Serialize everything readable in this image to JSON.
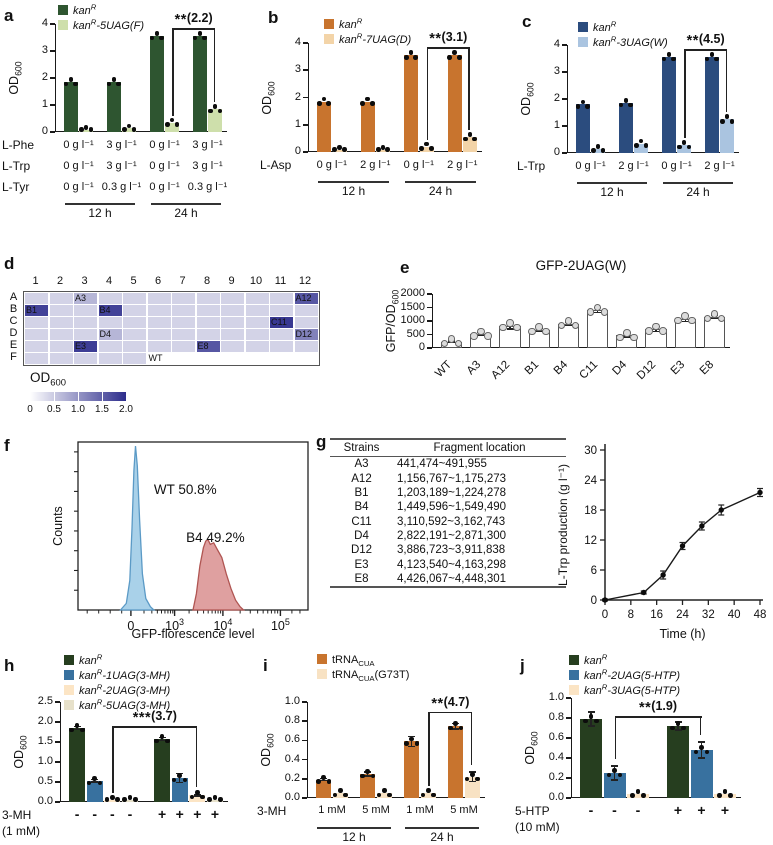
{
  "letters": {
    "a": "a",
    "b": "b",
    "c": "c",
    "d": "d",
    "e": "e",
    "f": "f",
    "g": "g",
    "h": "h",
    "i": "i",
    "j": "j"
  },
  "chart_data": [
    {
      "id": "a",
      "type": "bar",
      "ylabel": "OD_600_",
      "ymax": 4,
      "yticks": [
        "0",
        "1",
        "2",
        "3",
        "4"
      ],
      "colors": [
        "#2e5530",
        "#cedfab"
      ],
      "group_gap": 14,
      "legend": [
        {
          "label": "kan~R~",
          "italic": true
        },
        {
          "label": "kan~R~-5UAG(F)",
          "italic": true
        }
      ],
      "groups": [
        [
          1.85,
          0.08
        ],
        [
          1.85,
          0.13
        ],
        [
          3.55,
          0.35
        ],
        [
          3.55,
          0.85
        ]
      ],
      "xrows": [
        {
          "label": "L-Phe",
          "mode": "group",
          "values": [
            "0 g l⁻¹",
            "3 g l⁻¹",
            "0 g l⁻¹",
            "3 g l⁻¹"
          ]
        },
        {
          "label": "L-Trp",
          "mode": "group",
          "values": [
            "0 g l⁻¹",
            "3 g l⁻¹",
            "0 g l⁻¹",
            "3 g l⁻¹"
          ]
        },
        {
          "label": "L-Tyr",
          "mode": "group",
          "values": [
            "0 g l⁻¹",
            "0.3 g l⁻¹",
            "0 g l⁻¹",
            "0.3 g l⁻¹"
          ]
        }
      ],
      "time_groups": [
        {
          "label": "12 h",
          "from": 0,
          "to": 1
        },
        {
          "label": "24 h",
          "from": 2,
          "to": 3
        }
      ],
      "sig": {
        "text": "**(2.2)",
        "from": [
          2,
          1
        ],
        "to": [
          3,
          1
        ],
        "y": 3.85
      }
    },
    {
      "id": "b",
      "type": "bar",
      "ylabel": "OD_600_",
      "ymax": 4,
      "yticks": [
        "0",
        "1",
        "2",
        "3",
        "4"
      ],
      "colors": [
        "#c8742e",
        "#f3d4a8"
      ],
      "group_gap": 14,
      "legend": [
        {
          "label": "kan~R~",
          "italic": true
        },
        {
          "label": "kan~R~-7UAG(D)",
          "italic": true
        }
      ],
      "groups": [
        [
          1.85,
          0.07
        ],
        [
          1.85,
          0.08
        ],
        [
          3.55,
          0.2
        ],
        [
          3.55,
          0.55
        ]
      ],
      "xrows": [
        {
          "label": "L-Asp",
          "mode": "group",
          "values": [
            "0 g l⁻¹",
            "2 g l⁻¹",
            "0 g l⁻¹",
            "2 g l⁻¹"
          ]
        }
      ],
      "time_groups": [
        {
          "label": "12 h",
          "from": 0,
          "to": 1
        },
        {
          "label": "24 h",
          "from": 2,
          "to": 3
        }
      ],
      "sig": {
        "text": "**(3.1)",
        "from": [
          2,
          1
        ],
        "to": [
          3,
          1
        ],
        "y": 3.85
      }
    },
    {
      "id": "c",
      "type": "bar",
      "ylabel": "OD_600_",
      "ymax": 4,
      "yticks": [
        "0",
        "1",
        "2",
        "3",
        "4"
      ],
      "colors": [
        "#2b4c7e",
        "#aac4e0"
      ],
      "group_gap": 14,
      "legend": [
        {
          "label": "kan~R~",
          "italic": true
        },
        {
          "label": "kan~R~-3UAG(W)",
          "italic": true
        }
      ],
      "groups": [
        [
          1.8,
          0.15
        ],
        [
          1.85,
          0.35
        ],
        [
          3.55,
          0.3
        ],
        [
          3.55,
          1.25
        ]
      ],
      "xrows": [
        {
          "label": "L-Trp",
          "mode": "group",
          "values": [
            "0 g l⁻¹",
            "2 g l⁻¹",
            "0 g l⁻¹",
            "2 g l⁻¹"
          ]
        }
      ],
      "time_groups": [
        {
          "label": "12 h",
          "from": 0,
          "to": 1
        },
        {
          "label": "24 h",
          "from": 2,
          "to": 3
        }
      ],
      "sig": {
        "text": "**(4.5)",
        "from": [
          2,
          1
        ],
        "to": [
          3,
          1
        ],
        "y": 3.85
      }
    },
    {
      "id": "e",
      "type": "bar",
      "title": "GFP-2UAG(W)",
      "ylabel": "GFP/OD_600_",
      "ymax": 2000,
      "yticks": [
        "0",
        "500",
        "1000",
        "1500",
        "2000"
      ],
      "colors": [
        "#ffffff"
      ],
      "bar_stroke": "#555",
      "open_dots": true,
      "group_gap": 8,
      "groups": [
        [
          230
        ],
        [
          520
        ],
        [
          830
        ],
        [
          680
        ],
        [
          900
        ],
        [
          1400
        ],
        [
          470
        ],
        [
          700
        ],
        [
          1090
        ],
        [
          1160
        ]
      ],
      "errs": [
        [
          30
        ],
        [
          60
        ],
        [
          120
        ],
        [
          60
        ],
        [
          70
        ],
        [
          90
        ],
        [
          60
        ],
        [
          90
        ],
        [
          110
        ],
        [
          60
        ]
      ],
      "cats": [
        "WT",
        "A3",
        "A12",
        "B1",
        "B4",
        "C11",
        "D4",
        "D12",
        "E3",
        "E8"
      ]
    },
    {
      "id": "h",
      "type": "bar",
      "ylabel": "OD_600_",
      "ymax": 2.5,
      "yticks": [
        "0.0",
        "0.5",
        "1.0",
        "1.5",
        "2.0",
        "2.5"
      ],
      "colors": [
        "#263e1f",
        "#38719f",
        "#fce5c5",
        "#e7e1ca"
      ],
      "group_gap": 16,
      "legend": [
        {
          "label": "kan~R~",
          "italic": true
        },
        {
          "label": "kan~R~-1UAG(3-MH)",
          "italic": true
        },
        {
          "label": "kan~R~-2UAG(3-MH)",
          "italic": true
        },
        {
          "label": "kan~R~-5UAG(3-MH)",
          "italic": true
        }
      ],
      "groups": [
        [
          1.85,
          0.53,
          0.05,
          0.05
        ],
        [
          1.57,
          0.6,
          0.17,
          0.05
        ]
      ],
      "errs": [
        [
          0.03,
          0.03,
          0,
          0
        ],
        [
          0.04,
          0.12,
          0.02,
          0
        ]
      ],
      "xrows": [
        {
          "label": "3-MH",
          "label2": "(1 mM)",
          "mode": "bar",
          "values": [
            "-",
            "-",
            "-",
            "-",
            "+",
            "+",
            "+",
            "+"
          ]
        }
      ],
      "sig": {
        "text": "***(3.7)",
        "from": [
          0,
          2
        ],
        "to": [
          1,
          2
        ],
        "y": 1.9
      }
    },
    {
      "id": "i",
      "type": "bar",
      "ylabel": "OD_600_",
      "ymax": 1.0,
      "yticks": [
        "0.0",
        "0.2",
        "0.4",
        "0.6",
        "0.8",
        "1.0"
      ],
      "colors": [
        "#c8742e",
        "#f8e2c3"
      ],
      "group_gap": 12,
      "legend": [
        {
          "label": "tRNA_CUA_",
          "italic": false
        },
        {
          "label": "tRNA_CUA_(G73T)",
          "italic": false
        }
      ],
      "groups": [
        [
          0.19,
          0.05
        ],
        [
          0.25,
          0.05
        ],
        [
          0.59,
          0.05
        ],
        [
          0.75,
          0.22
        ]
      ],
      "errs": [
        [
          0.01,
          0
        ],
        [
          0.02,
          0
        ],
        [
          0.05,
          0
        ],
        [
          0.03,
          0.05
        ]
      ],
      "xrows": [
        {
          "label": "3-MH",
          "mode": "group",
          "values": [
            "1 mM",
            "5 mM",
            "1 mM",
            "5 mM"
          ]
        }
      ],
      "time_groups": [
        {
          "label": "12 h",
          "from": 0,
          "to": 1
        },
        {
          "label": "24 h",
          "from": 2,
          "to": 3
        }
      ],
      "sig": {
        "text": "**(4.7)",
        "from": [
          2,
          1
        ],
        "to": [
          3,
          1
        ],
        "y": 0.9
      }
    },
    {
      "id": "j",
      "type": "bar",
      "ylabel": "OD_600_",
      "ymax": 1.0,
      "yticks": [
        "0.0",
        "0.2",
        "0.4",
        "0.6",
        "0.8",
        "1.0"
      ],
      "colors": [
        "#263e1f",
        "#38719f",
        "#fbe4c4"
      ],
      "group_gap": 18,
      "legend": [
        {
          "label": "kan~R~",
          "italic": true
        },
        {
          "label": "kan~R~-2UAG(5-HTP)",
          "italic": true
        },
        {
          "label": "kan~R~-3UAG(5-HTP)",
          "italic": true
        }
      ],
      "groups": [
        [
          0.79,
          0.25,
          0.04
        ],
        [
          0.72,
          0.48,
          0.04
        ]
      ],
      "errs": [
        [
          0.07,
          0.07,
          0
        ],
        [
          0.04,
          0.08,
          0
        ]
      ],
      "xrows": [
        {
          "label": "5-HTP",
          "label2": "(10 mM)",
          "mode": "bar",
          "values": [
            "-",
            "-",
            "-",
            "+",
            "+",
            "+"
          ]
        }
      ],
      "sig": {
        "text": "**(1.9)",
        "from": [
          0,
          1
        ],
        "to": [
          1,
          1
        ],
        "y": 0.82
      }
    }
  ],
  "plate": {
    "cols": [
      "1",
      "2",
      "3",
      "4",
      "5",
      "6",
      "7",
      "8",
      "9",
      "10",
      "11",
      "12"
    ],
    "rows": [
      "A",
      "B",
      "C",
      "D",
      "E",
      "F"
    ],
    "base_value": 0.42,
    "max": 2.0,
    "highlights": [
      {
        "label": "A3",
        "row": 0,
        "col": 2,
        "value": 0.7
      },
      {
        "label": "A12",
        "row": 0,
        "col": 11,
        "value": 1.6
      },
      {
        "label": "B1",
        "row": 1,
        "col": 0,
        "value": 1.8
      },
      {
        "label": "B4",
        "row": 1,
        "col": 3,
        "value": 1.8
      },
      {
        "label": "C11",
        "row": 2,
        "col": 10,
        "value": 1.9
      },
      {
        "label": "D4",
        "row": 3,
        "col": 3,
        "value": 0.7
      },
      {
        "label": "D12",
        "row": 3,
        "col": 11,
        "value": 1.2
      },
      {
        "label": "E3",
        "row": 4,
        "col": 2,
        "value": 1.85
      },
      {
        "label": "E8",
        "row": 4,
        "col": 7,
        "value": 1.6
      }
    ],
    "wt": {
      "label": "WT",
      "row": 5,
      "col": 5
    },
    "blank": {
      "row": 5,
      "from_col": 6,
      "to_col": 11
    },
    "legend": {
      "label": "OD_600_",
      "ticks": [
        "0",
        "0.5",
        "1.0",
        "1.5",
        "2.0"
      ],
      "color_low": "#ffffff",
      "color_high": "#2d2d8c"
    }
  },
  "flow": {
    "ylabel": "Counts",
    "xlabel": "GFP-florescence level",
    "xticks": [
      {
        "label": "0",
        "f": 0.23
      },
      {
        "label": "10~3~",
        "f": 0.42
      },
      {
        "label": "10~4~",
        "f": 0.63
      },
      {
        "label": "10~5~",
        "f": 0.88
      }
    ],
    "series": [
      {
        "name": "WT",
        "annotation": "WT 50.8%",
        "fill": "#a9d1e9",
        "stroke": "#5b9ac6",
        "points": [
          [
            0.185,
            0
          ],
          [
            0.21,
            0.04
          ],
          [
            0.225,
            0.18
          ],
          [
            0.235,
            0.5
          ],
          [
            0.243,
            0.85
          ],
          [
            0.25,
            1.0
          ],
          [
            0.258,
            0.88
          ],
          [
            0.268,
            0.55
          ],
          [
            0.28,
            0.22
          ],
          [
            0.295,
            0.07
          ],
          [
            0.315,
            0.02
          ],
          [
            0.33,
            0
          ]
        ]
      },
      {
        "name": "B4",
        "annotation": "B4 49.2%",
        "fill": "#dfa0a0",
        "stroke": "#b05552",
        "points": [
          [
            0.5,
            0
          ],
          [
            0.515,
            0.1
          ],
          [
            0.53,
            0.27
          ],
          [
            0.545,
            0.38
          ],
          [
            0.555,
            0.42
          ],
          [
            0.565,
            0.43
          ],
          [
            0.575,
            0.4
          ],
          [
            0.59,
            0.41
          ],
          [
            0.605,
            0.37
          ],
          [
            0.625,
            0.32
          ],
          [
            0.645,
            0.22
          ],
          [
            0.665,
            0.13
          ],
          [
            0.685,
            0.06
          ],
          [
            0.705,
            0.02
          ],
          [
            0.72,
            0
          ]
        ]
      }
    ]
  },
  "table": {
    "headers": [
      "Strains",
      "Fragment location"
    ],
    "rows": [
      [
        "A3",
        "441,474~491,955"
      ],
      [
        "A12",
        "1,156,767~1,175,273"
      ],
      [
        "B1",
        "1,203,189~1,224,278"
      ],
      [
        "B4",
        "1,449,596~1,549,490"
      ],
      [
        "C11",
        "3,110,592~3,162,743"
      ],
      [
        "D4",
        "2,822,191~2,871,300"
      ],
      [
        "D12",
        "3,886,723~3,911,838"
      ],
      [
        "E3",
        "4,123,540~4,163,298"
      ],
      [
        "E8",
        "4,426,067~4,448,301"
      ]
    ]
  },
  "line": {
    "type": "line",
    "xlabel": "Time (h)",
    "ylabel": "L-Trp production (g l⁻¹)",
    "x": [
      0,
      12,
      18,
      24,
      30,
      36,
      48
    ],
    "y": [
      0,
      1.5,
      5,
      10.8,
      14.8,
      18,
      21.5
    ],
    "err": [
      0.2,
      0.3,
      0.8,
      0.7,
      0.8,
      1.0,
      0.8
    ],
    "xticks": [
      0,
      8,
      16,
      24,
      32,
      40,
      48
    ],
    "yticks": [
      0,
      6,
      12,
      18,
      24,
      30
    ],
    "xlim": [
      0,
      48
    ],
    "ylim": [
      0,
      30
    ]
  }
}
